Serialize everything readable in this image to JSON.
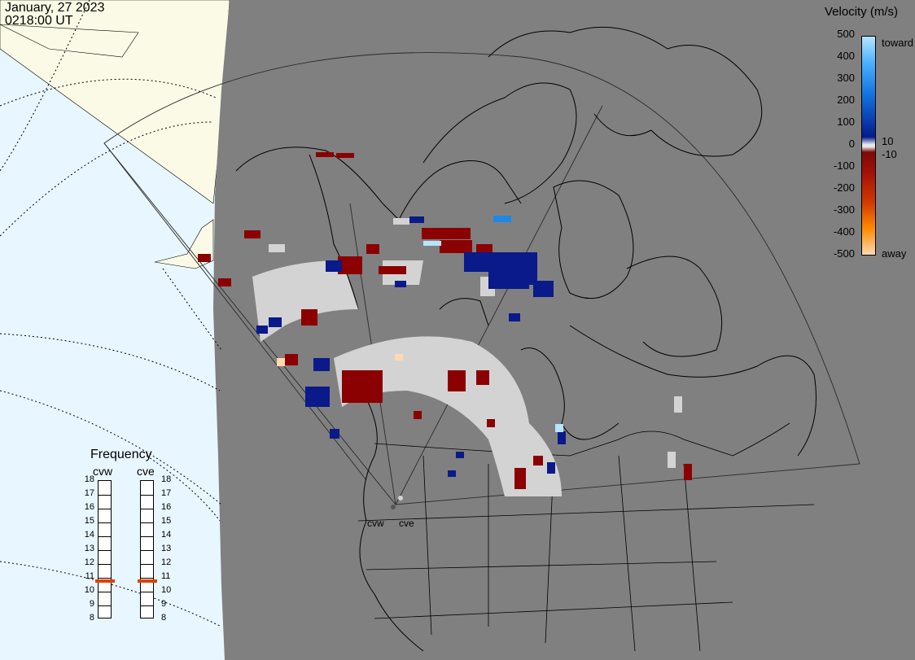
{
  "header": {
    "date": "January, 27 2023",
    "time": "0218:00 UT"
  },
  "colorbar": {
    "title": "Velocity (m/s)",
    "ticks": [
      "500",
      "400",
      "300",
      "200",
      "100",
      "0",
      "-100",
      "-200",
      "-300",
      "-400",
      "-500"
    ],
    "label_toward": "toward",
    "label_away": "away",
    "label_pos": "10",
    "label_neg": "-10"
  },
  "frequency": {
    "title": "Frequency",
    "radars": [
      "cvw",
      "cve"
    ],
    "scale": [
      "18",
      "17",
      "16",
      "15",
      "14",
      "13",
      "12",
      "11",
      "10",
      "9",
      "8"
    ],
    "current_mhz": [
      10.7,
      10.7
    ]
  },
  "sites": {
    "west": "cvw",
    "east": "cve"
  },
  "colors": {
    "night": "#808080",
    "day": "#e8f6ff",
    "land_day": "#fafae6",
    "toward": "#0a1a8a",
    "away": "#8b0000",
    "ground_scatter": "#d3d3d3",
    "freq_marker": "#e04000"
  }
}
